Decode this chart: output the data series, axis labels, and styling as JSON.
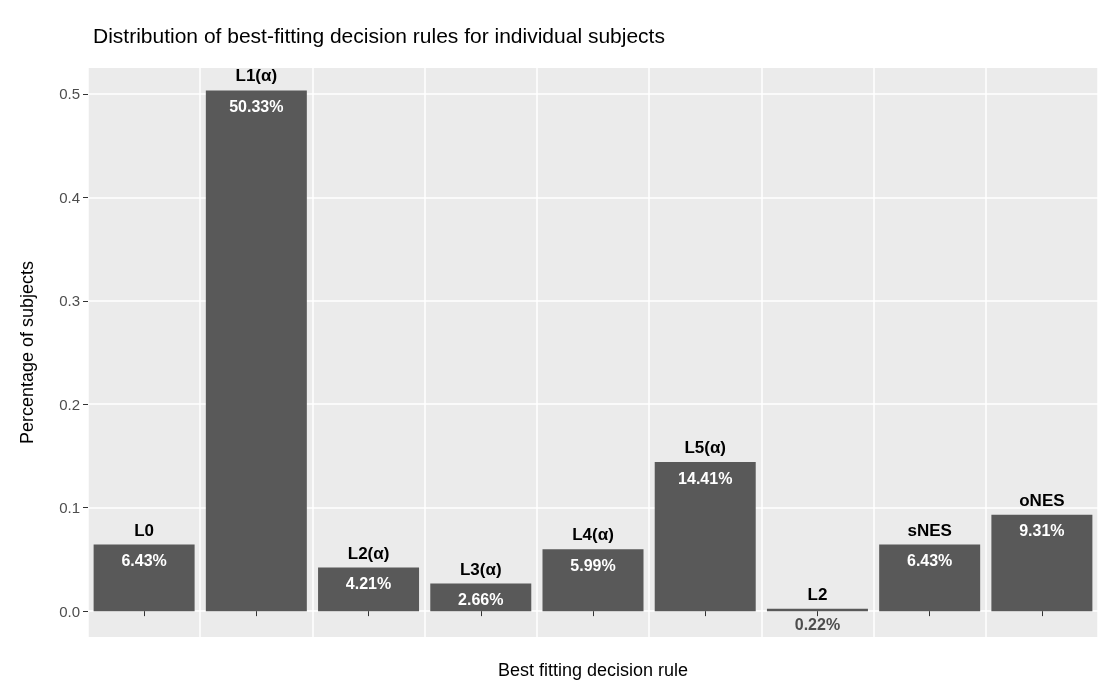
{
  "chart_data": {
    "type": "bar",
    "title": "Distribution of best-fitting decision rules for individual subjects",
    "xlabel": "Best fitting decision rule",
    "ylabel": "Percentage of subjects",
    "categories": [
      "L0",
      "L1(α)",
      "L2(α)",
      "L3(α)",
      "L4(α)",
      "L5(α)",
      "L2",
      "sNES",
      "oNES"
    ],
    "values": [
      0.0643,
      0.5033,
      0.0421,
      0.0266,
      0.0599,
      0.1441,
      0.0022,
      0.0643,
      0.0931
    ],
    "value_labels": [
      "6.43%",
      "50.33%",
      "4.21%",
      "2.66%",
      "5.99%",
      "14.41%",
      "0.22%",
      "6.43%",
      "9.31%"
    ],
    "color": "#595959",
    "ylim": [
      -0.025,
      0.525
    ],
    "yticks": [
      {
        "value": 0,
        "label": "0.0"
      },
      {
        "value": 0.1,
        "label": "0.1"
      },
      {
        "value": 0.2,
        "label": "0.2"
      },
      {
        "value": 0.3,
        "label": "0.3"
      },
      {
        "value": 0.4,
        "label": "0.4"
      },
      {
        "value": 0.5,
        "label": "0.5"
      }
    ],
    "grid": true,
    "tick_labels": "y"
  }
}
